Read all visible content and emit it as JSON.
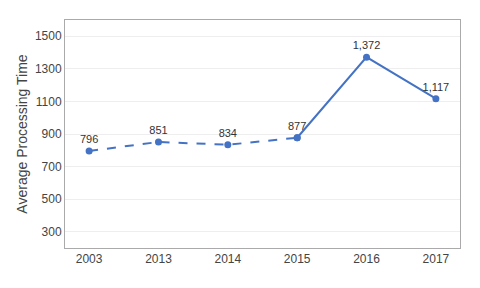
{
  "chart_data": {
    "type": "line",
    "categories": [
      "2003",
      "2013",
      "2014",
      "2015",
      "2016",
      "2017"
    ],
    "series": [
      {
        "values": [
          796,
          851,
          834,
          877,
          null,
          null
        ],
        "value_labels": [
          "796",
          "851",
          "834",
          "877",
          null,
          null
        ],
        "color": "#4472C4",
        "marker": "circle",
        "line_style": "dashed"
      },
      {
        "values": [
          null,
          null,
          null,
          877,
          1372,
          1117
        ],
        "value_labels": [
          null,
          null,
          null,
          null,
          "1,372",
          "1,117"
        ],
        "color": "#4472C4",
        "marker": "circle",
        "line_style": "solid"
      }
    ],
    "ylabel": "Average Processing Time",
    "ylim": [
      200,
      1600
    ],
    "yticks": [
      300,
      500,
      700,
      900,
      1100,
      1300,
      1500
    ],
    "grid": true,
    "data_labels": true
  }
}
